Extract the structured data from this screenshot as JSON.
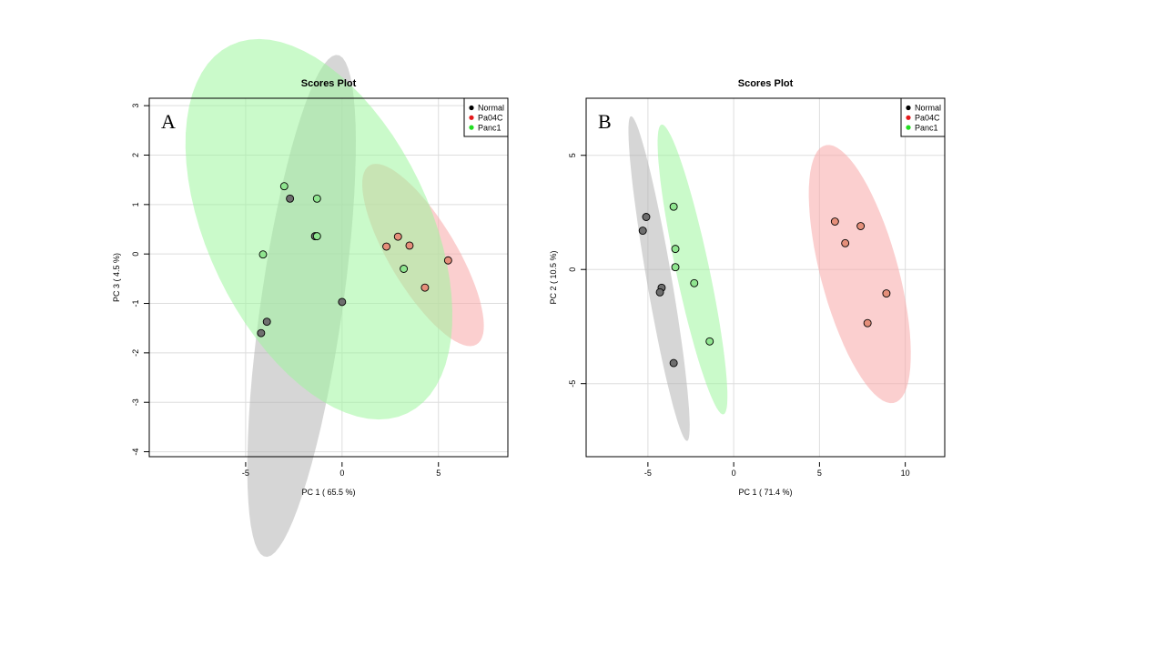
{
  "chart_data": [
    {
      "type": "scatter",
      "panel_label": "A",
      "title": "Scores Plot",
      "xlabel": "PC 1 ( 65.5 %)",
      "ylabel": "PC 3 ( 4.5 %)",
      "xlim": [
        -10,
        8.6
      ],
      "ylim": [
        -4.1,
        3.15
      ],
      "xticks": [
        -5,
        0,
        5
      ],
      "yticks": [
        -4,
        -3,
        -2,
        -1,
        0,
        1,
        2,
        3
      ],
      "grid": true,
      "legend_position": "top-right",
      "legend": [
        "Normal",
        "Pa04C",
        "Panc1"
      ],
      "series": [
        {
          "name": "Normal",
          "color": "#000000",
          "point_fill": "#6e6e6e",
          "ellipse_fill": "#b4b4b4",
          "points": [
            [
              -2.7,
              1.12
            ],
            [
              -1.4,
              0.36
            ],
            [
              0.0,
              -0.97
            ],
            [
              -3.9,
              -1.37
            ],
            [
              -4.2,
              -1.6
            ]
          ],
          "ellipse": {
            "cx": -2.1,
            "cy": -1.05,
            "rx": 5.45,
            "ry": 2.0,
            "angle_deg": 67
          }
        },
        {
          "name": "Pa04C",
          "color": "#e31a1c",
          "point_fill": "#e58f7a",
          "ellipse_fill": "#f7a8a8",
          "points": [
            [
              2.3,
              0.15
            ],
            [
              2.9,
              0.35
            ],
            [
              3.5,
              0.17
            ],
            [
              4.3,
              -0.68
            ],
            [
              5.5,
              -0.13
            ]
          ],
          "ellipse": {
            "cx": 4.2,
            "cy": -0.02,
            "rx": 3.5,
            "ry": 1.05,
            "angle_deg": -27
          }
        },
        {
          "name": "Panc1",
          "color": "#22dd22",
          "point_fill": "#8fe58f",
          "ellipse_fill": "#9ef59e",
          "points": [
            [
              -3.0,
              1.37
            ],
            [
              -1.3,
              1.12
            ],
            [
              -1.3,
              0.36
            ],
            [
              -4.1,
              -0.01
            ],
            [
              3.2,
              -0.3
            ]
          ],
          "ellipse": {
            "cx": -1.2,
            "cy": 0.5,
            "rx": 7.2,
            "ry": 3.3,
            "angle_deg": -18
          }
        }
      ]
    },
    {
      "type": "scatter",
      "panel_label": "B",
      "title": "Scores Plot",
      "xlabel": "PC 1 ( 71.4 %)",
      "ylabel": "PC 2 ( 10.5 %)",
      "xlim": [
        -8.6,
        12.3
      ],
      "ylim": [
        -8.2,
        7.5
      ],
      "xticks": [
        -5,
        0,
        5,
        10
      ],
      "yticks": [
        -5,
        0,
        5
      ],
      "grid": true,
      "legend_position": "top-right",
      "legend": [
        "Normal",
        "Pa04C",
        "Panc1"
      ],
      "series": [
        {
          "name": "Normal",
          "color": "#000000",
          "point_fill": "#6e6e6e",
          "ellipse_fill": "#b4b4b4",
          "points": [
            [
              -5.1,
              2.3
            ],
            [
              -5.3,
              1.7
            ],
            [
              -4.2,
              -0.8
            ],
            [
              -4.3,
              -1.0
            ],
            [
              -3.5,
              -4.1
            ]
          ],
          "ellipse": {
            "cx": -4.35,
            "cy": -0.4,
            "rx": 7.3,
            "ry": 0.72,
            "angle_deg": -77
          }
        },
        {
          "name": "Pa04C",
          "color": "#e31a1c",
          "point_fill": "#e58f7a",
          "ellipse_fill": "#f7a8a8",
          "points": [
            [
              5.9,
              2.1
            ],
            [
              6.5,
              1.15
            ],
            [
              7.4,
              1.9
            ],
            [
              8.9,
              -1.05
            ],
            [
              7.8,
              -2.35
            ]
          ],
          "ellipse": {
            "cx": 7.35,
            "cy": -0.2,
            "rx": 6.0,
            "ry": 2.2,
            "angle_deg": -69
          }
        },
        {
          "name": "Panc1",
          "color": "#22dd22",
          "point_fill": "#8fe58f",
          "ellipse_fill": "#9ef59e",
          "points": [
            [
              -3.5,
              2.75
            ],
            [
              -3.4,
              0.9
            ],
            [
              -3.4,
              0.1
            ],
            [
              -2.3,
              -0.6
            ],
            [
              -1.4,
              -3.15
            ]
          ],
          "ellipse": {
            "cx": -2.4,
            "cy": 0.0,
            "rx": 6.6,
            "ry": 0.95,
            "angle_deg": -74
          }
        }
      ]
    }
  ]
}
